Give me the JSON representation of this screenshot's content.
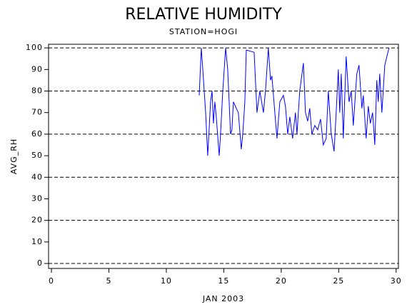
{
  "chart_data": {
    "type": "line",
    "title": "RELATIVE HUMIDITY",
    "subtitle": "STATION=HOGI",
    "x_label": "JAN 2003",
    "y_label": "AVG_RH",
    "xlim": [
      -0.25,
      30.2
    ],
    "xticks": [
      0,
      5,
      10,
      15,
      20,
      25,
      30
    ],
    "ylim": [
      -2.3,
      101.7
    ],
    "yticks": [
      0,
      10,
      20,
      30,
      40,
      50,
      60,
      70,
      80,
      90,
      100
    ],
    "grid_values": [
      0,
      20,
      40,
      60,
      80,
      100
    ],
    "grid": true,
    "x": [
      12.86,
      13.04,
      13.17,
      13.42,
      13.6,
      13.85,
      13.98,
      14.1,
      14.22,
      14.35,
      14.6,
      14.72,
      14.91,
      15.16,
      15.34,
      15.59,
      15.71,
      15.84,
      16.09,
      16.27,
      16.52,
      16.65,
      16.83,
      16.96,
      17.64,
      17.89,
      18.14,
      18.45,
      18.63,
      18.88,
      19.07,
      19.19,
      19.44,
      19.63,
      19.88,
      20.19,
      20.37,
      20.56,
      20.75,
      20.99,
      21.24,
      21.37,
      21.61,
      21.93,
      22.11,
      22.3,
      22.48,
      22.67,
      22.92,
      23.17,
      23.42,
      23.66,
      23.91,
      24.1,
      24.35,
      24.6,
      24.78,
      24.97,
      25.09,
      25.22,
      25.4,
      25.65,
      25.9,
      26.09,
      26.27,
      26.58,
      26.77,
      27.02,
      27.14,
      27.39,
      27.58,
      27.76,
      27.95,
      28.14,
      28.32,
      28.45,
      28.57,
      28.76,
      29.01,
      29.38
    ],
    "series": [
      {
        "color": "#0000ff",
        "values": [
          78,
          100,
          90,
          70,
          50,
          75,
          80,
          65,
          75,
          68,
          50,
          60,
          80,
          100,
          90,
          60,
          62,
          75,
          72,
          70,
          53,
          60,
          75,
          99,
          98,
          70,
          80,
          70,
          80,
          100,
          85,
          87,
          70,
          58,
          75,
          78,
          73,
          60,
          68,
          58,
          70,
          60,
          80,
          93,
          70,
          66,
          72,
          60,
          64,
          62,
          67,
          55,
          58,
          80,
          60,
          52,
          70,
          90,
          70,
          88,
          58,
          96,
          75,
          80,
          64,
          88,
          92,
          72,
          78,
          58,
          73,
          65,
          70,
          55,
          85,
          75,
          88,
          70,
          92,
          100
        ]
      }
    ]
  }
}
